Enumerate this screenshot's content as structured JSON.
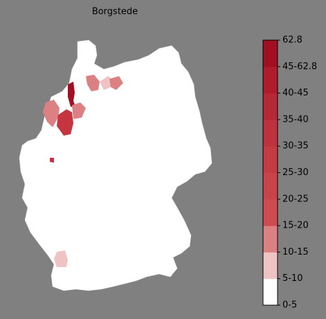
{
  "title": "Borgstede",
  "legend": {
    "labels": [
      "0-5",
      "5-10",
      "10-15",
      "15-20",
      "20-25",
      "25-30",
      "30-35",
      "35-40",
      "40-45",
      "45-62.8",
      "62.8"
    ],
    "colors": [
      "#ffffff",
      "#efc3c3",
      "#dd8084",
      "#cf4b52",
      "#c9434b",
      "#c43b44",
      "#be323d",
      "#b72836",
      "#af1d2d",
      "#a00f22"
    ]
  }
}
